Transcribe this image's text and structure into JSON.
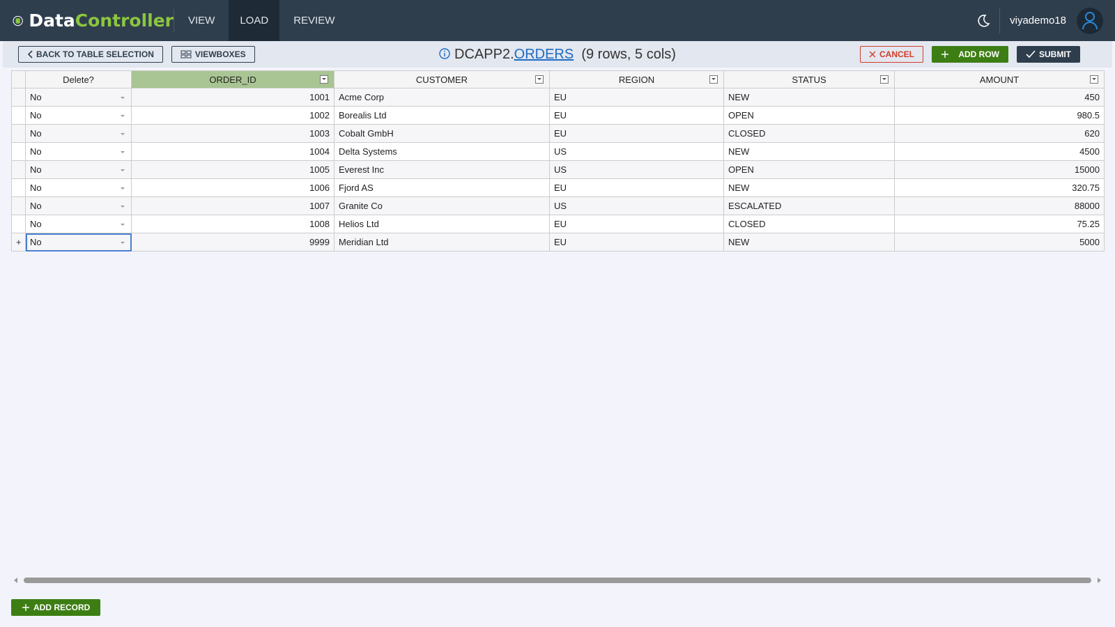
{
  "header": {
    "brand_1": "Data",
    "brand_2": "Controller",
    "nav": [
      "VIEW",
      "LOAD",
      "REVIEW"
    ],
    "user": "viyademo18"
  },
  "toolbar": {
    "back": "BACK TO TABLE SELECTION",
    "viewboxes": "VIEWBOXES",
    "library": "DCAPP2.",
    "table": "ORDERS",
    "summary": "(9 rows, 5 cols)",
    "cancel": "CANCEL",
    "add_row": "ADD ROW",
    "submit": "SUBMIT"
  },
  "table": {
    "columns": [
      "Delete?",
      "ORDER_ID",
      "CUSTOMER",
      "REGION",
      "STATUS",
      "AMOUNT"
    ],
    "rows": [
      {
        "cells": [
          "No",
          1001,
          "Acme Corp",
          "EU",
          "NEW",
          450
        ]
      },
      {
        "cells": [
          "No",
          1002,
          "Borealis Ltd",
          "EU",
          "OPEN",
          980.5
        ]
      },
      {
        "cells": [
          "No",
          1003,
          "Cobalt GmbH",
          "EU",
          "CLOSED",
          620
        ]
      },
      {
        "cells": [
          "No",
          1004,
          "Delta Systems",
          "US",
          "NEW",
          4500
        ]
      },
      {
        "cells": [
          "No",
          1005,
          "Everest Inc",
          "US",
          "OPEN",
          15000
        ]
      },
      {
        "cells": [
          "No",
          1006,
          "Fjord AS",
          "EU",
          "NEW",
          320.75
        ]
      },
      {
        "cells": [
          "No",
          1007,
          "Granite Co",
          "US",
          "ESCALATED",
          88000
        ]
      },
      {
        "cells": [
          "No",
          1008,
          "Helios Ltd",
          "EU",
          "CLOSED",
          75.25
        ]
      },
      {
        "marker": "+",
        "cells": [
          "No",
          9999,
          "Meridian Ltd",
          "EU",
          "NEW",
          5000
        ]
      }
    ]
  },
  "footer": {
    "add_record": "ADD RECORD"
  }
}
